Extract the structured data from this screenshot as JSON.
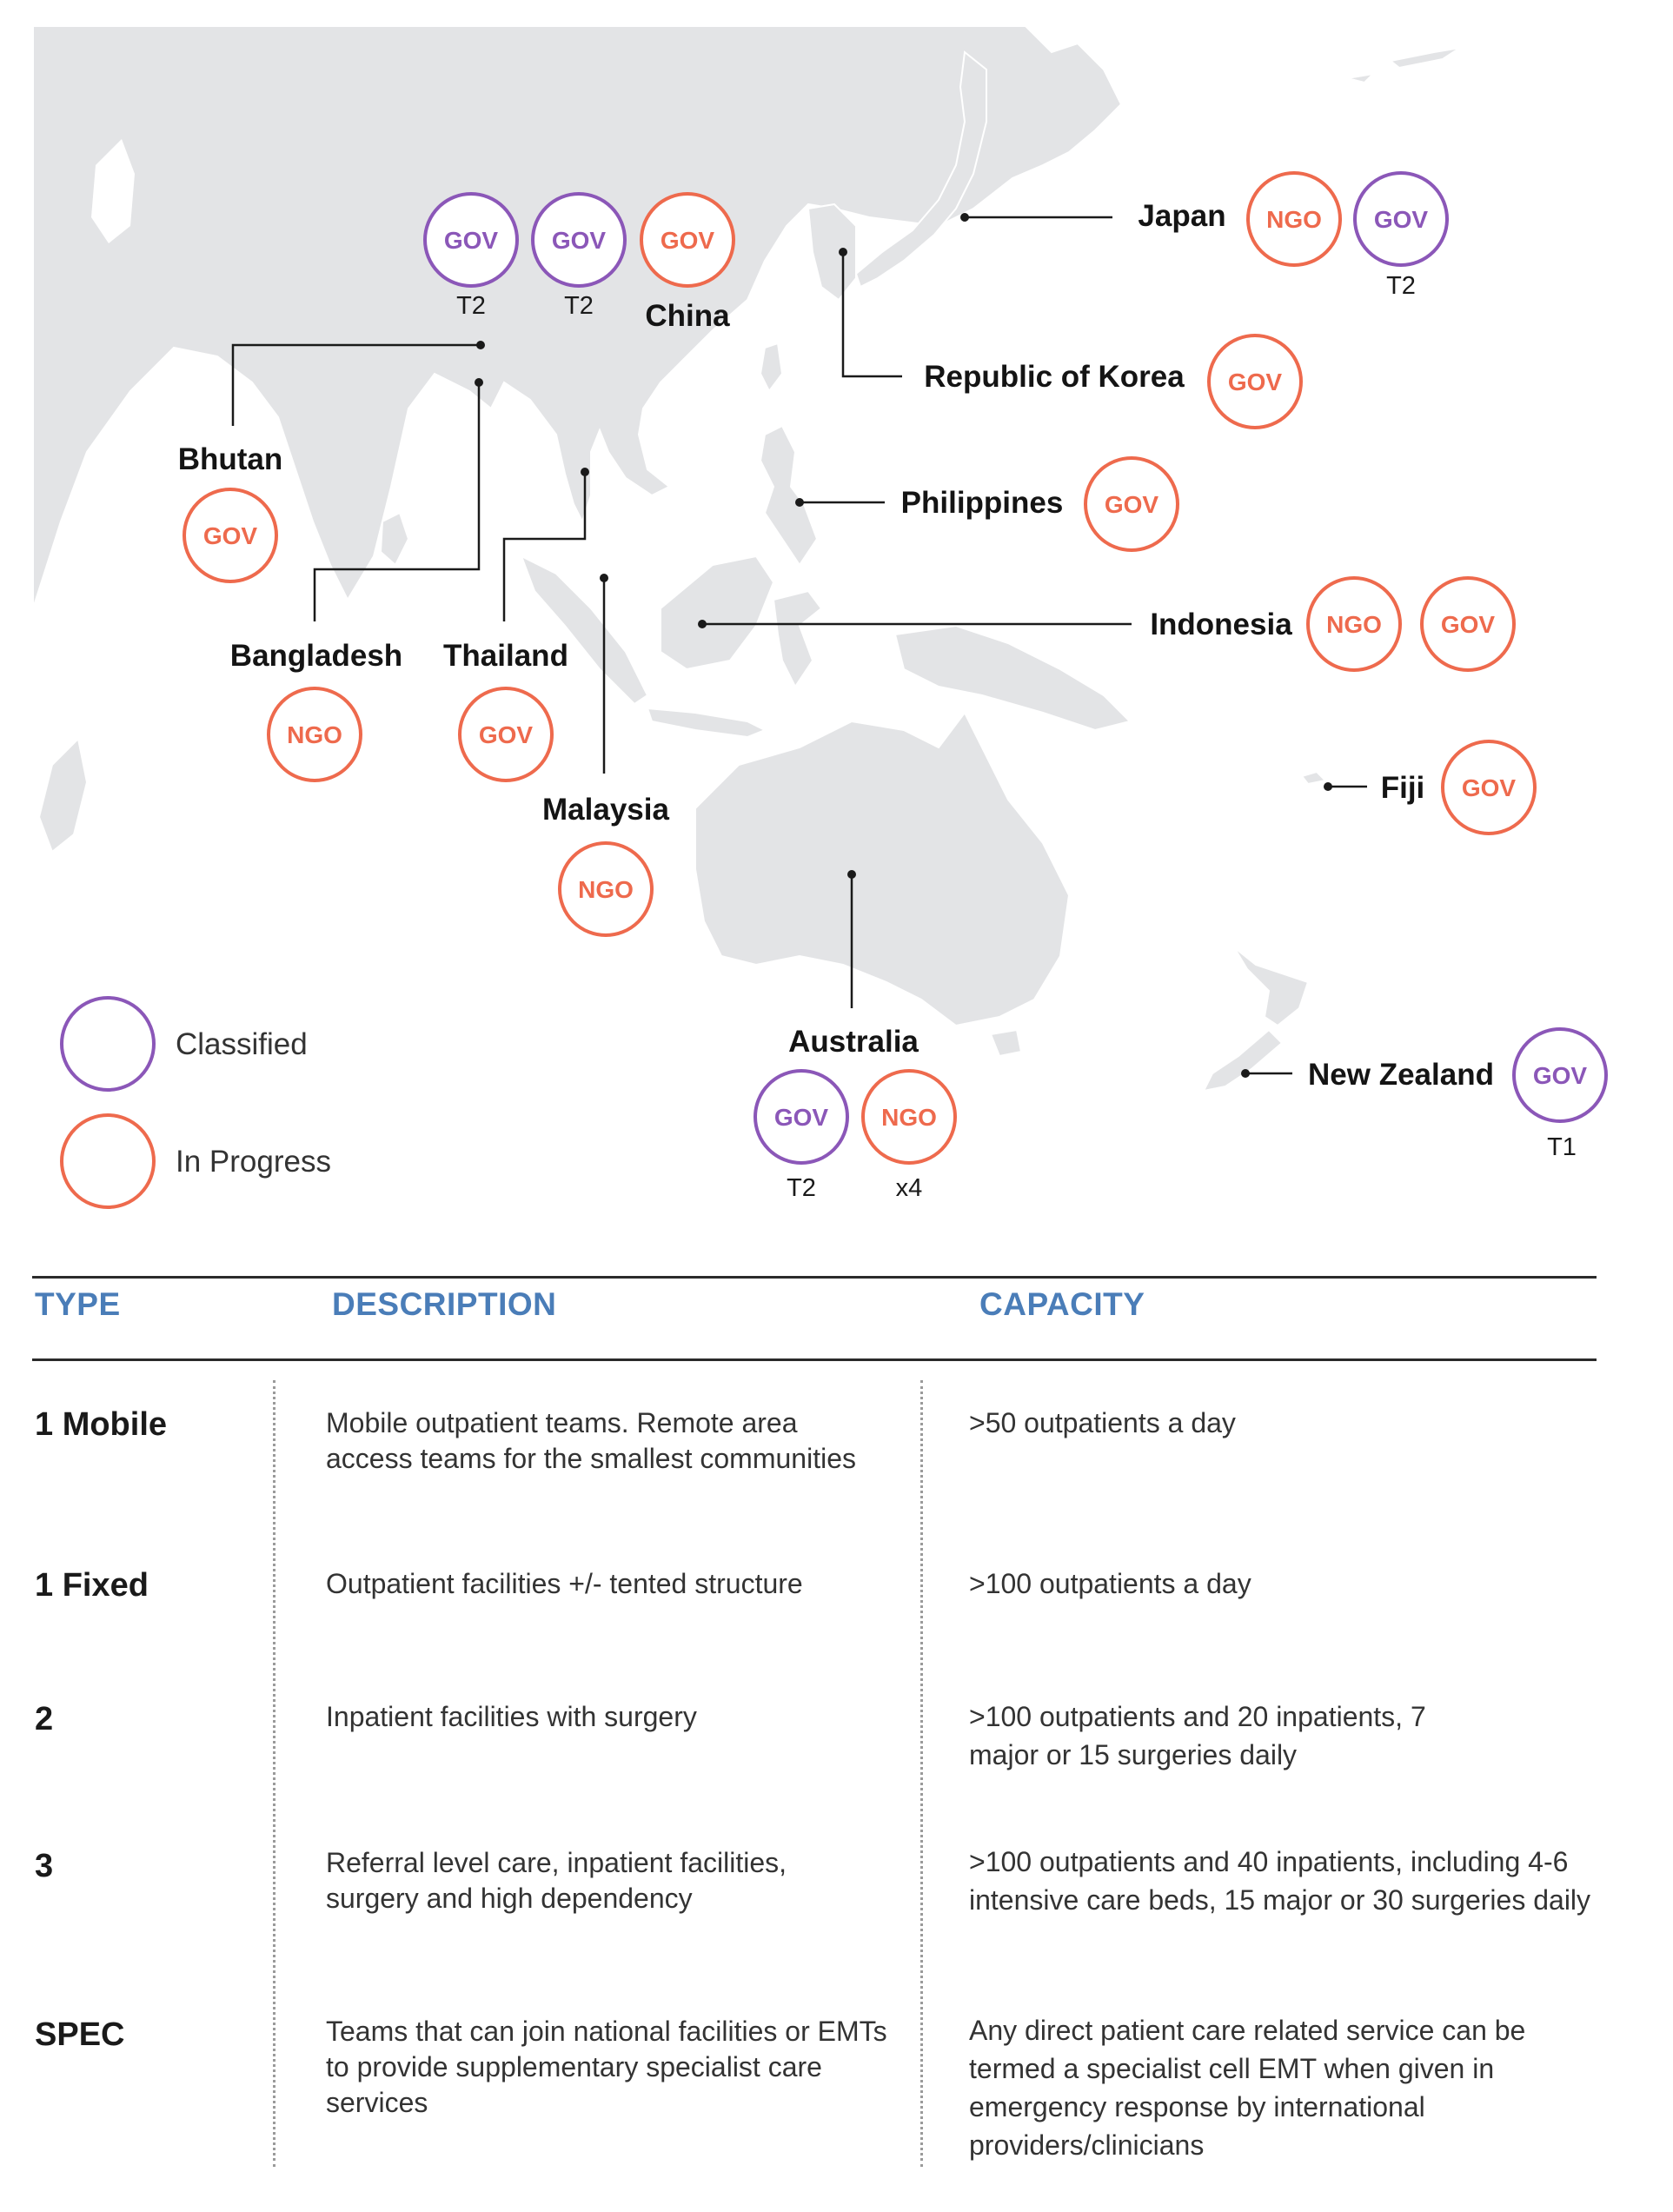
{
  "colors": {
    "classified": "#8b57b8",
    "in_progress": "#ee6a4d",
    "land": "#e3e4e6",
    "table_header": "#4a7db8"
  },
  "map": {
    "countries": [
      {
        "name": "China",
        "badges": [
          {
            "text": "GOV",
            "status": "classified",
            "note": "T2"
          },
          {
            "text": "GOV",
            "status": "classified",
            "note": "T2"
          },
          {
            "text": "GOV",
            "status": "in_progress",
            "note": ""
          }
        ]
      },
      {
        "name": "Japan",
        "badges": [
          {
            "text": "NGO",
            "status": "in_progress",
            "note": ""
          },
          {
            "text": "GOV",
            "status": "classified",
            "note": "T2"
          }
        ]
      },
      {
        "name": "Republic of Korea",
        "badges": [
          {
            "text": "GOV",
            "status": "in_progress",
            "note": ""
          }
        ]
      },
      {
        "name": "Bhutan",
        "badges": [
          {
            "text": "GOV",
            "status": "in_progress",
            "note": ""
          }
        ]
      },
      {
        "name": "Philippines",
        "badges": [
          {
            "text": "GOV",
            "status": "in_progress",
            "note": ""
          }
        ]
      },
      {
        "name": "Indonesia",
        "badges": [
          {
            "text": "NGO",
            "status": "in_progress",
            "note": ""
          },
          {
            "text": "GOV",
            "status": "in_progress",
            "note": ""
          }
        ]
      },
      {
        "name": "Bangladesh",
        "badges": [
          {
            "text": "NGO",
            "status": "in_progress",
            "note": ""
          }
        ]
      },
      {
        "name": "Thailand",
        "badges": [
          {
            "text": "GOV",
            "status": "in_progress",
            "note": ""
          }
        ]
      },
      {
        "name": "Fiji",
        "badges": [
          {
            "text": "GOV",
            "status": "in_progress",
            "note": ""
          }
        ]
      },
      {
        "name": "Malaysia",
        "badges": [
          {
            "text": "NGO",
            "status": "in_progress",
            "note": ""
          }
        ]
      },
      {
        "name": "Australia",
        "badges": [
          {
            "text": "GOV",
            "status": "classified",
            "note": "T2"
          },
          {
            "text": "NGO",
            "status": "in_progress",
            "note": "x4"
          }
        ]
      },
      {
        "name": "New Zealand",
        "badges": [
          {
            "text": "GOV",
            "status": "classified",
            "note": "T1"
          }
        ]
      }
    ],
    "legend": [
      {
        "label": "Classified",
        "status": "classified"
      },
      {
        "label": "In Progress",
        "status": "in_progress"
      }
    ]
  },
  "table": {
    "headers": {
      "type": "TYPE",
      "description": "DESCRIPTION",
      "capacity": "CAPACITY"
    },
    "rows": [
      {
        "type": "1 Mobile",
        "description": "Mobile outpatient teams. Remote area access teams for the smallest communities",
        "capacity": ">50 outpatients a day"
      },
      {
        "type": "1 Fixed",
        "description": "Outpatient facilities +/- tented structure",
        "capacity": ">100 outpatients a day"
      },
      {
        "type": "2",
        "description": "Inpatient facilities with surgery",
        "capacity": ">100 outpatients and 20 inpatients, 7 major or 15 surgeries daily"
      },
      {
        "type": "3",
        "description": "Referral level care, inpatient facilities, surgery and high dependency",
        "capacity": ">100 outpatients and 40 inpatients, including 4-6 intensive care beds, 15 major or 30 surgeries daily"
      },
      {
        "type": "SPEC",
        "description": "Teams that can join national facilities or EMTs to provide supplementary specialist care services",
        "capacity": "Any direct patient care related service can be termed a specialist cell EMT when given in emergency response by international providers/clinicians"
      }
    ]
  }
}
